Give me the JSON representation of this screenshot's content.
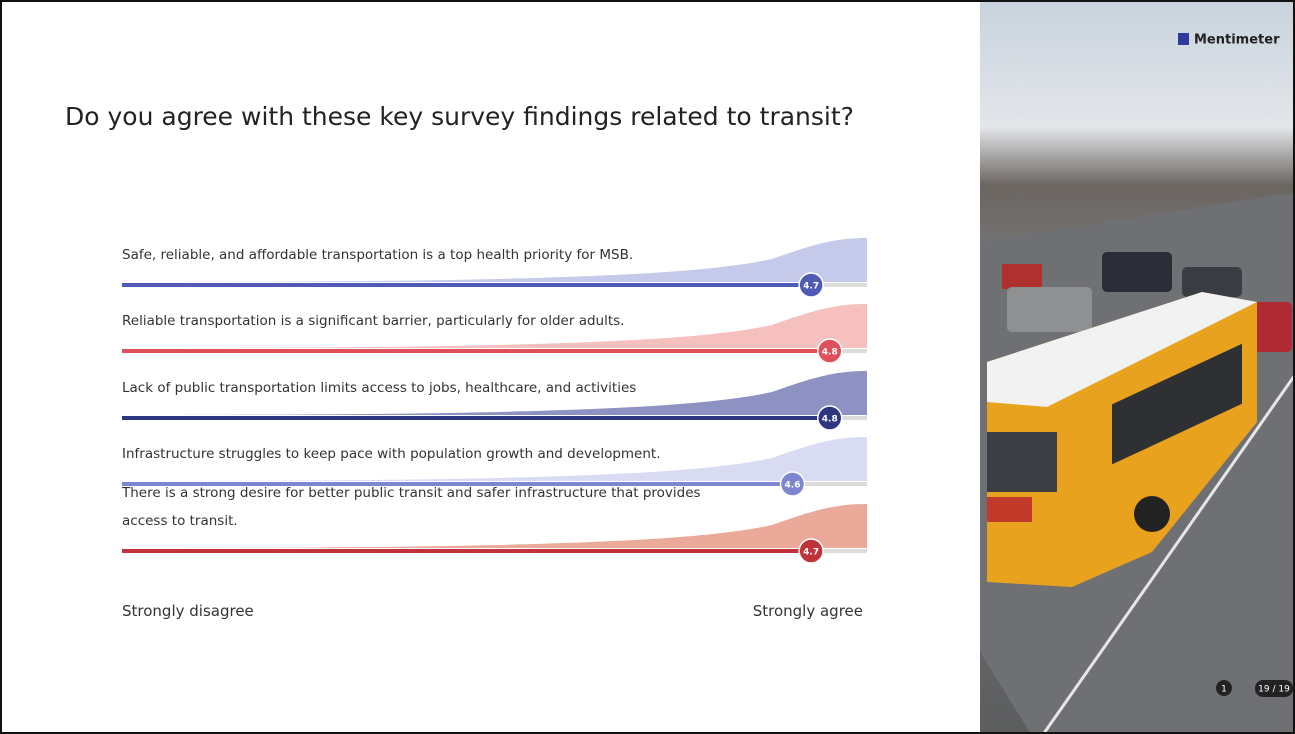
{
  "chart_data": {
    "type": "scale",
    "title": "Do you agree with these key survey findings related to transit?",
    "categories": [
      "Safe, reliable, and affordable transportation is a top health priority for MSB.",
      "Reliable transportation is a significant barrier, particularly for older adults.",
      "Lack of public transportation limits access to jobs, healthcare, and activities",
      "Infrastructure struggles to keep pace with population growth and development.",
      "There is a strong desire for better public transit and safer infrastructure that provides access to transit."
    ],
    "values": [
      4.7,
      4.8,
      4.8,
      4.6,
      4.7
    ],
    "colors": [
      "#4f5bb5",
      "#e0505a",
      "#2e3680",
      "#7d87cf",
      "#c0333b"
    ],
    "area_colors": [
      "#c5c9ea",
      "#f6c0bf",
      "#8e92c2",
      "#d8dbf1",
      "#eaa999"
    ],
    "xlim": [
      1,
      5
    ],
    "scale_labels": [
      "Strongly disagree",
      "Strongly agree"
    ]
  },
  "brand": "Mentimeter",
  "reactions": "1",
  "participants": "19 / 19"
}
